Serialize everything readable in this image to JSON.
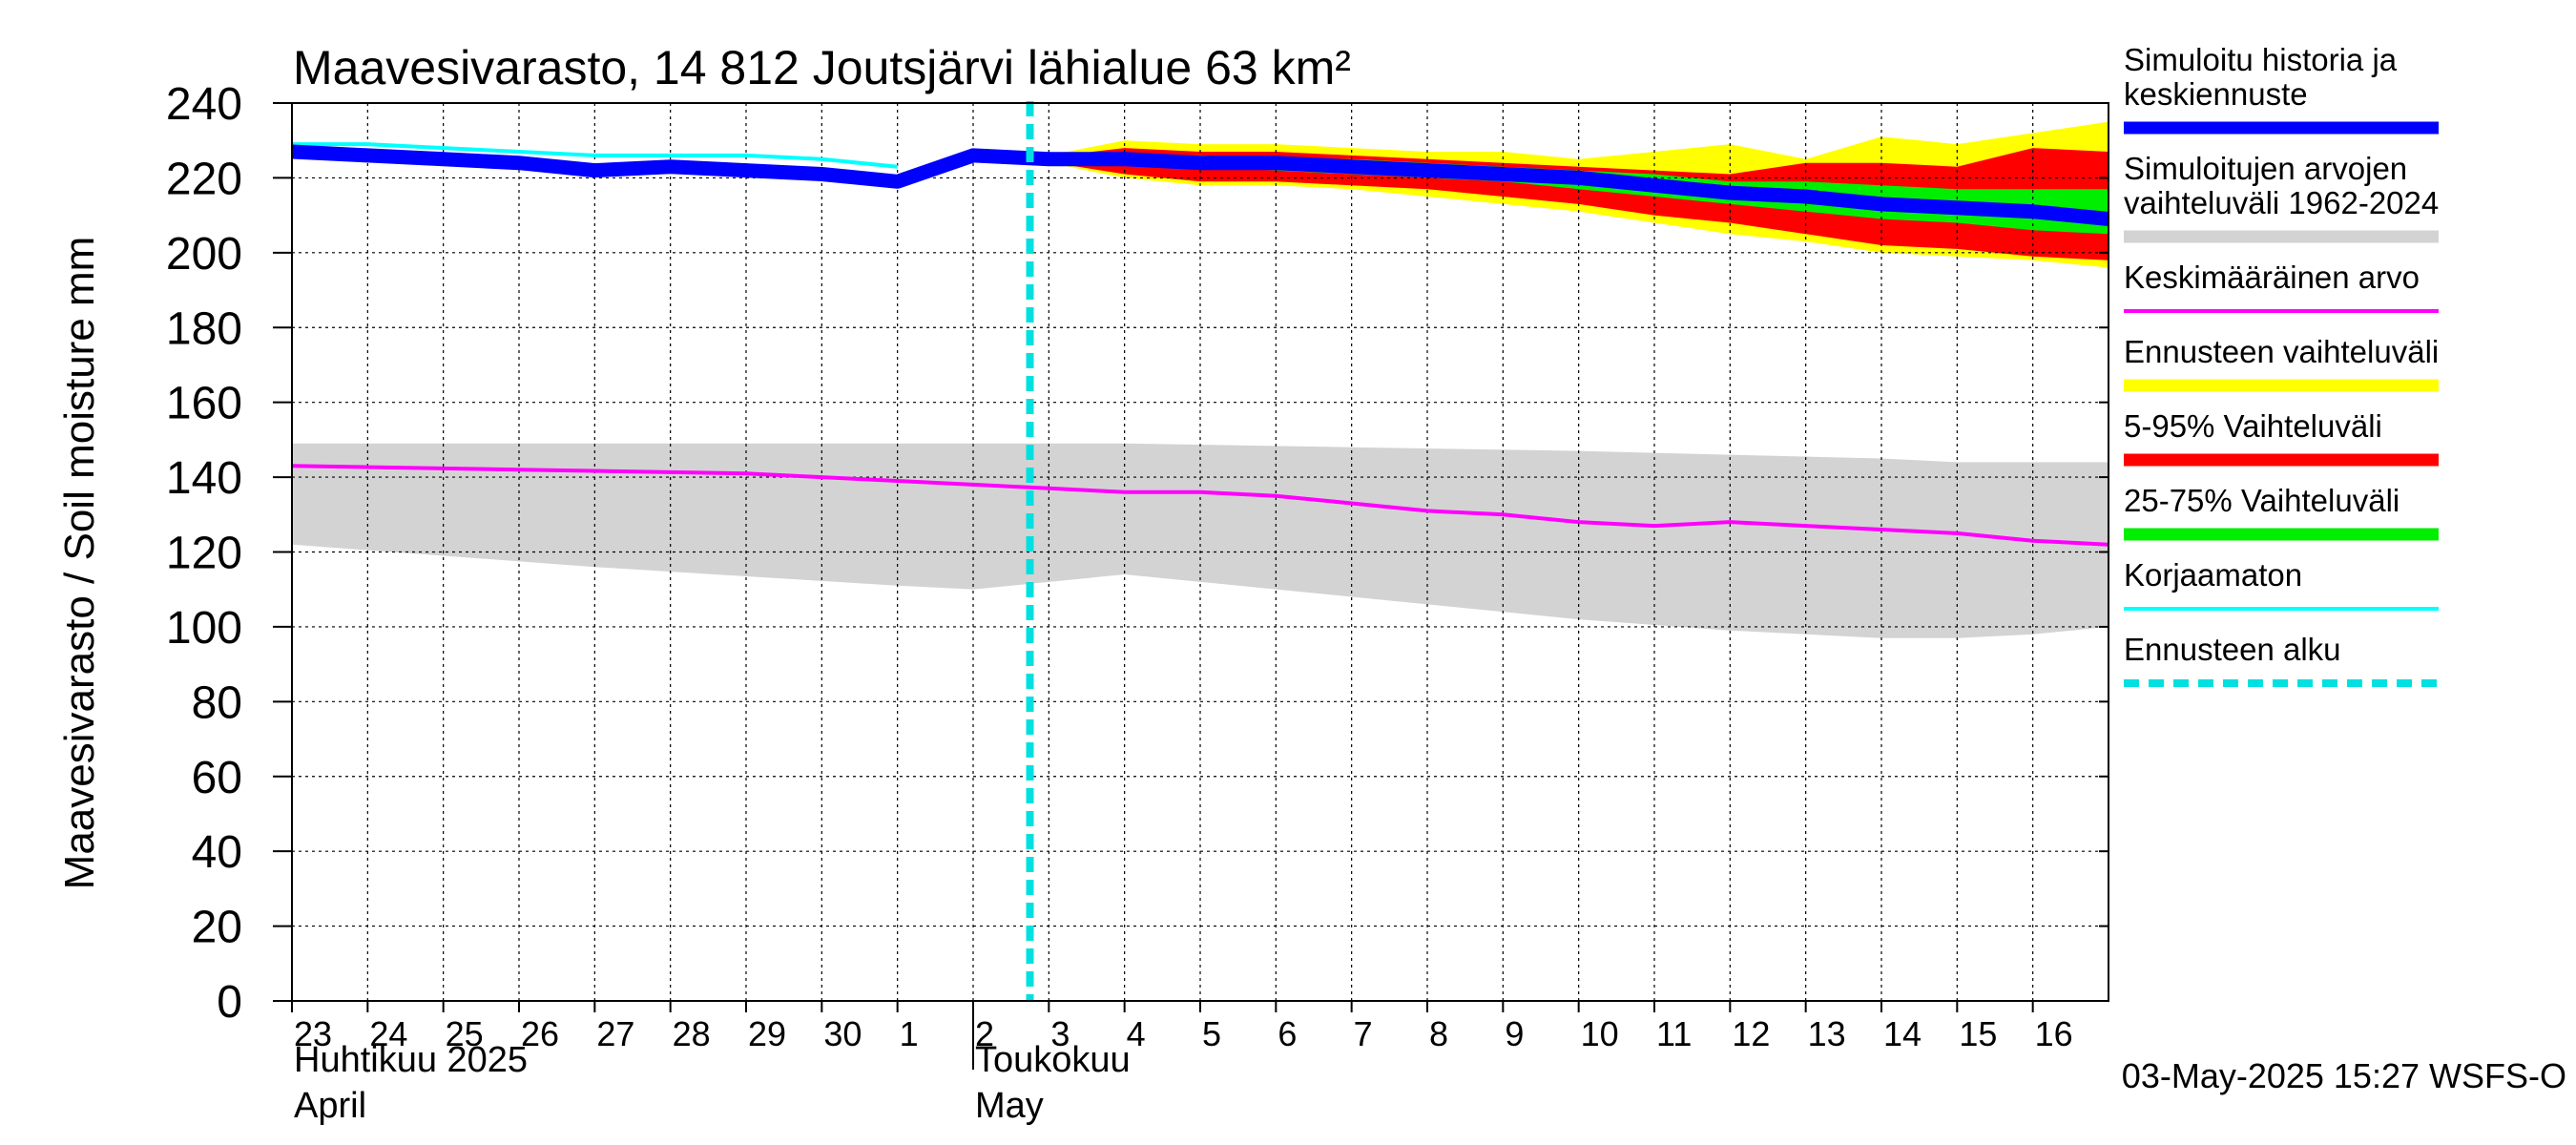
{
  "chart_data": {
    "type": "area",
    "title": "Maavesivarasto, 14 812 Joutsjärvi lähialue 63 km²",
    "ylabel": "Maavesivarasto / Soil moisture   mm",
    "ylim": [
      0,
      240
    ],
    "yticks": [
      0,
      20,
      40,
      60,
      80,
      100,
      120,
      140,
      160,
      180,
      200,
      220,
      240
    ],
    "grid": true,
    "x_start": "2025-04-23",
    "x_end": "2025-05-17",
    "day_ticks": [
      "23",
      "24",
      "25",
      "26",
      "27",
      "28",
      "29",
      "30",
      "1",
      "2",
      "3",
      "4",
      "5",
      "6",
      "7",
      "8",
      "9",
      "10",
      "11",
      "12",
      "13",
      "14",
      "15",
      "16"
    ],
    "month_labels": [
      {
        "lines": [
          "Huhtikuu  2025",
          "April"
        ],
        "date": "2025-04-23"
      },
      {
        "lines": [
          "Toukokuu",
          "May"
        ],
        "date": "2025-05-02"
      }
    ],
    "forecast_start": "2025-05-02T18:00",
    "colors": {
      "history": "#0000ff",
      "hist_range": "#d3d3d3",
      "mean": "#ff00ff",
      "fc_range": "#ffff00",
      "range_5_95": "#ff0000",
      "range_25_75": "#00ee00",
      "uncorrected": "#00ffff",
      "forecast_start": "#00e0e0"
    },
    "series": {
      "hist_range": {
        "x": [
          "2025-04-23",
          "2025-04-27",
          "2025-05-01",
          "2025-05-02",
          "2025-05-03",
          "2025-05-04",
          "2025-05-07",
          "2025-05-10",
          "2025-05-12",
          "2025-05-14",
          "2025-05-15",
          "2025-05-16",
          "2025-05-17"
        ],
        "upper": [
          149,
          149,
          149,
          149,
          149,
          149,
          148,
          147,
          146,
          145,
          144,
          144,
          144
        ],
        "lower": [
          122,
          116,
          111,
          110,
          112,
          114,
          108,
          102,
          99,
          97,
          97,
          98,
          100
        ]
      },
      "mean": {
        "x": [
          "2025-04-23",
          "2025-04-26",
          "2025-04-29",
          "2025-04-30",
          "2025-05-01",
          "2025-05-02",
          "2025-05-03",
          "2025-05-04",
          "2025-05-05",
          "2025-05-06",
          "2025-05-07",
          "2025-05-08",
          "2025-05-09",
          "2025-05-10",
          "2025-05-11",
          "2025-05-12",
          "2025-05-13",
          "2025-05-14",
          "2025-05-15",
          "2025-05-16",
          "2025-05-17"
        ],
        "values": [
          143,
          142,
          141,
          140,
          139,
          138,
          137,
          136,
          136,
          135,
          133,
          131,
          130,
          128,
          127,
          128,
          127,
          126,
          125,
          123,
          122
        ]
      },
      "uncorrected": {
        "x": [
          "2025-04-23",
          "2025-04-24",
          "2025-04-25",
          "2025-04-26",
          "2025-04-27",
          "2025-04-28",
          "2025-04-29",
          "2025-04-30",
          "2025-05-01"
        ],
        "values": [
          229,
          229,
          228,
          227,
          226,
          226,
          226,
          225,
          223
        ]
      },
      "fc_range": {
        "x": [
          "2025-05-02T18:00",
          "2025-05-04",
          "2025-05-05",
          "2025-05-06",
          "2025-05-07",
          "2025-05-08",
          "2025-05-09",
          "2025-05-10",
          "2025-05-11",
          "2025-05-12",
          "2025-05-13",
          "2025-05-14",
          "2025-05-15",
          "2025-05-16",
          "2025-05-17"
        ],
        "upper": [
          225,
          230,
          229,
          229,
          228,
          227,
          227,
          225,
          227,
          229,
          225,
          231,
          229,
          232,
          235
        ],
        "lower": [
          225,
          220,
          218,
          218,
          217,
          215,
          213,
          211,
          208,
          205,
          203,
          200,
          199,
          198,
          196
        ]
      },
      "range_5_95": {
        "x": [
          "2025-05-02T18:00",
          "2025-05-04",
          "2025-05-05",
          "2025-05-06",
          "2025-05-07",
          "2025-05-08",
          "2025-05-09",
          "2025-05-10",
          "2025-05-11",
          "2025-05-12",
          "2025-05-13",
          "2025-05-14",
          "2025-05-15",
          "2025-05-16",
          "2025-05-17"
        ],
        "upper": [
          225,
          228,
          227,
          227,
          226,
          225,
          224,
          223,
          222,
          221,
          224,
          224,
          223,
          228,
          227
        ],
        "lower": [
          225,
          221,
          219,
          219,
          218,
          217,
          215,
          213,
          210,
          208,
          205,
          202,
          201,
          199,
          198
        ]
      },
      "range_25_75": {
        "x": [
          "2025-05-02T18:00",
          "2025-05-04",
          "2025-05-05",
          "2025-05-06",
          "2025-05-07",
          "2025-05-08",
          "2025-05-09",
          "2025-05-10",
          "2025-05-11",
          "2025-05-12",
          "2025-05-13",
          "2025-05-14",
          "2025-05-15",
          "2025-05-16",
          "2025-05-17"
        ],
        "upper": [
          225,
          226,
          226,
          225,
          225,
          224,
          223,
          222,
          221,
          219,
          219,
          218,
          217,
          217,
          217
        ],
        "lower": [
          225,
          224,
          223,
          222,
          221,
          220,
          219,
          217,
          215,
          213,
          211,
          209,
          208,
          206,
          205
        ]
      },
      "history": {
        "x": [
          "2025-04-23",
          "2025-04-24",
          "2025-04-25",
          "2025-04-26",
          "2025-04-27",
          "2025-04-28",
          "2025-04-29",
          "2025-04-30",
          "2025-05-01",
          "2025-05-02",
          "2025-05-03",
          "2025-05-04",
          "2025-05-05",
          "2025-05-06",
          "2025-05-07",
          "2025-05-08",
          "2025-05-09",
          "2025-05-10",
          "2025-05-11",
          "2025-05-12",
          "2025-05-13",
          "2025-05-14",
          "2025-05-15",
          "2025-05-16",
          "2025-05-17"
        ],
        "values": [
          227,
          226,
          225,
          224,
          222,
          223,
          222,
          221,
          219,
          226,
          225,
          225,
          224,
          224,
          223,
          222,
          221,
          220,
          218,
          216,
          215,
          213,
          212,
          211,
          209
        ]
      }
    },
    "legend": [
      {
        "key": "history",
        "style": "thick",
        "label": "Simuloitu historia ja\nkeskiennuste"
      },
      {
        "key": "hist_range",
        "style": "thick",
        "label": "Simuloitujen arvojen\nvaihteluväli 1962-2024"
      },
      {
        "key": "mean",
        "style": "thin",
        "label": "Keskimääräinen arvo"
      },
      {
        "key": "fc_range",
        "style": "thick",
        "label": "Ennusteen vaihteluväli"
      },
      {
        "key": "range_5_95",
        "style": "thick",
        "label": "5-95% Vaihteluväli"
      },
      {
        "key": "range_25_75",
        "style": "thick",
        "label": "25-75% Vaihteluväli"
      },
      {
        "key": "uncorrected",
        "style": "thin",
        "label": "Korjaamaton"
      },
      {
        "key": "forecast_start",
        "style": "dashed",
        "label": "Ennusteen alku"
      }
    ],
    "timestamp": "03-May-2025 15:27 WSFS-O"
  }
}
